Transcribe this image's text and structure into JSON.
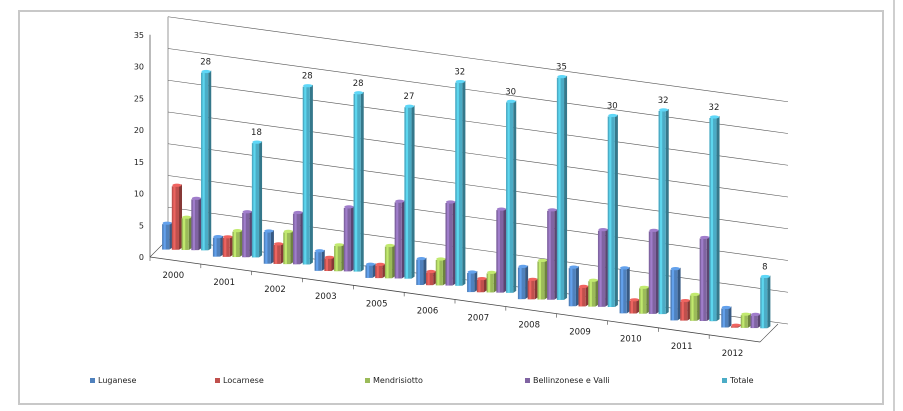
{
  "chart_data": {
    "type": "bar",
    "title": "",
    "xlabel": "",
    "ylabel": "",
    "ylim": [
      0,
      35
    ],
    "yticks": [
      0,
      5,
      10,
      15,
      20,
      25,
      30,
      35
    ],
    "grid": true,
    "legend_position": "bottom",
    "categories": [
      "2000",
      "2001",
      "2002",
      "2003",
      "2005",
      "2006",
      "2007",
      "2008",
      "2009",
      "2010",
      "2011",
      "2012"
    ],
    "series": [
      {
        "name": "Luganese",
        "color": "#4f81bd",
        "values": [
          4,
          3,
          5,
          3,
          2,
          4,
          3,
          5,
          6,
          7,
          8,
          3
        ]
      },
      {
        "name": "Locarnese",
        "color": "#c0504d",
        "values": [
          10,
          3,
          3,
          2,
          2,
          2,
          2,
          3,
          3,
          2,
          3,
          0
        ]
      },
      {
        "name": "Mendrisiotto",
        "color": "#9bbb59",
        "values": [
          5,
          4,
          5,
          4,
          5,
          4,
          3,
          6,
          4,
          4,
          4,
          2
        ]
      },
      {
        "name": "Bellinzonese e Valli",
        "color": "#8064a2",
        "values": [
          8,
          7,
          8,
          10,
          12,
          13,
          13,
          14,
          12,
          13,
          13,
          2
        ]
      },
      {
        "name": "Totale",
        "color": "#4bacc6",
        "values": [
          28,
          18,
          28,
          28,
          27,
          32,
          30,
          35,
          30,
          32,
          32,
          8
        ]
      }
    ],
    "total_labels": [
      "28",
      "18",
      "28",
      "28",
      "27",
      "32",
      "30",
      "35",
      "30",
      "32",
      "32",
      "8"
    ]
  }
}
